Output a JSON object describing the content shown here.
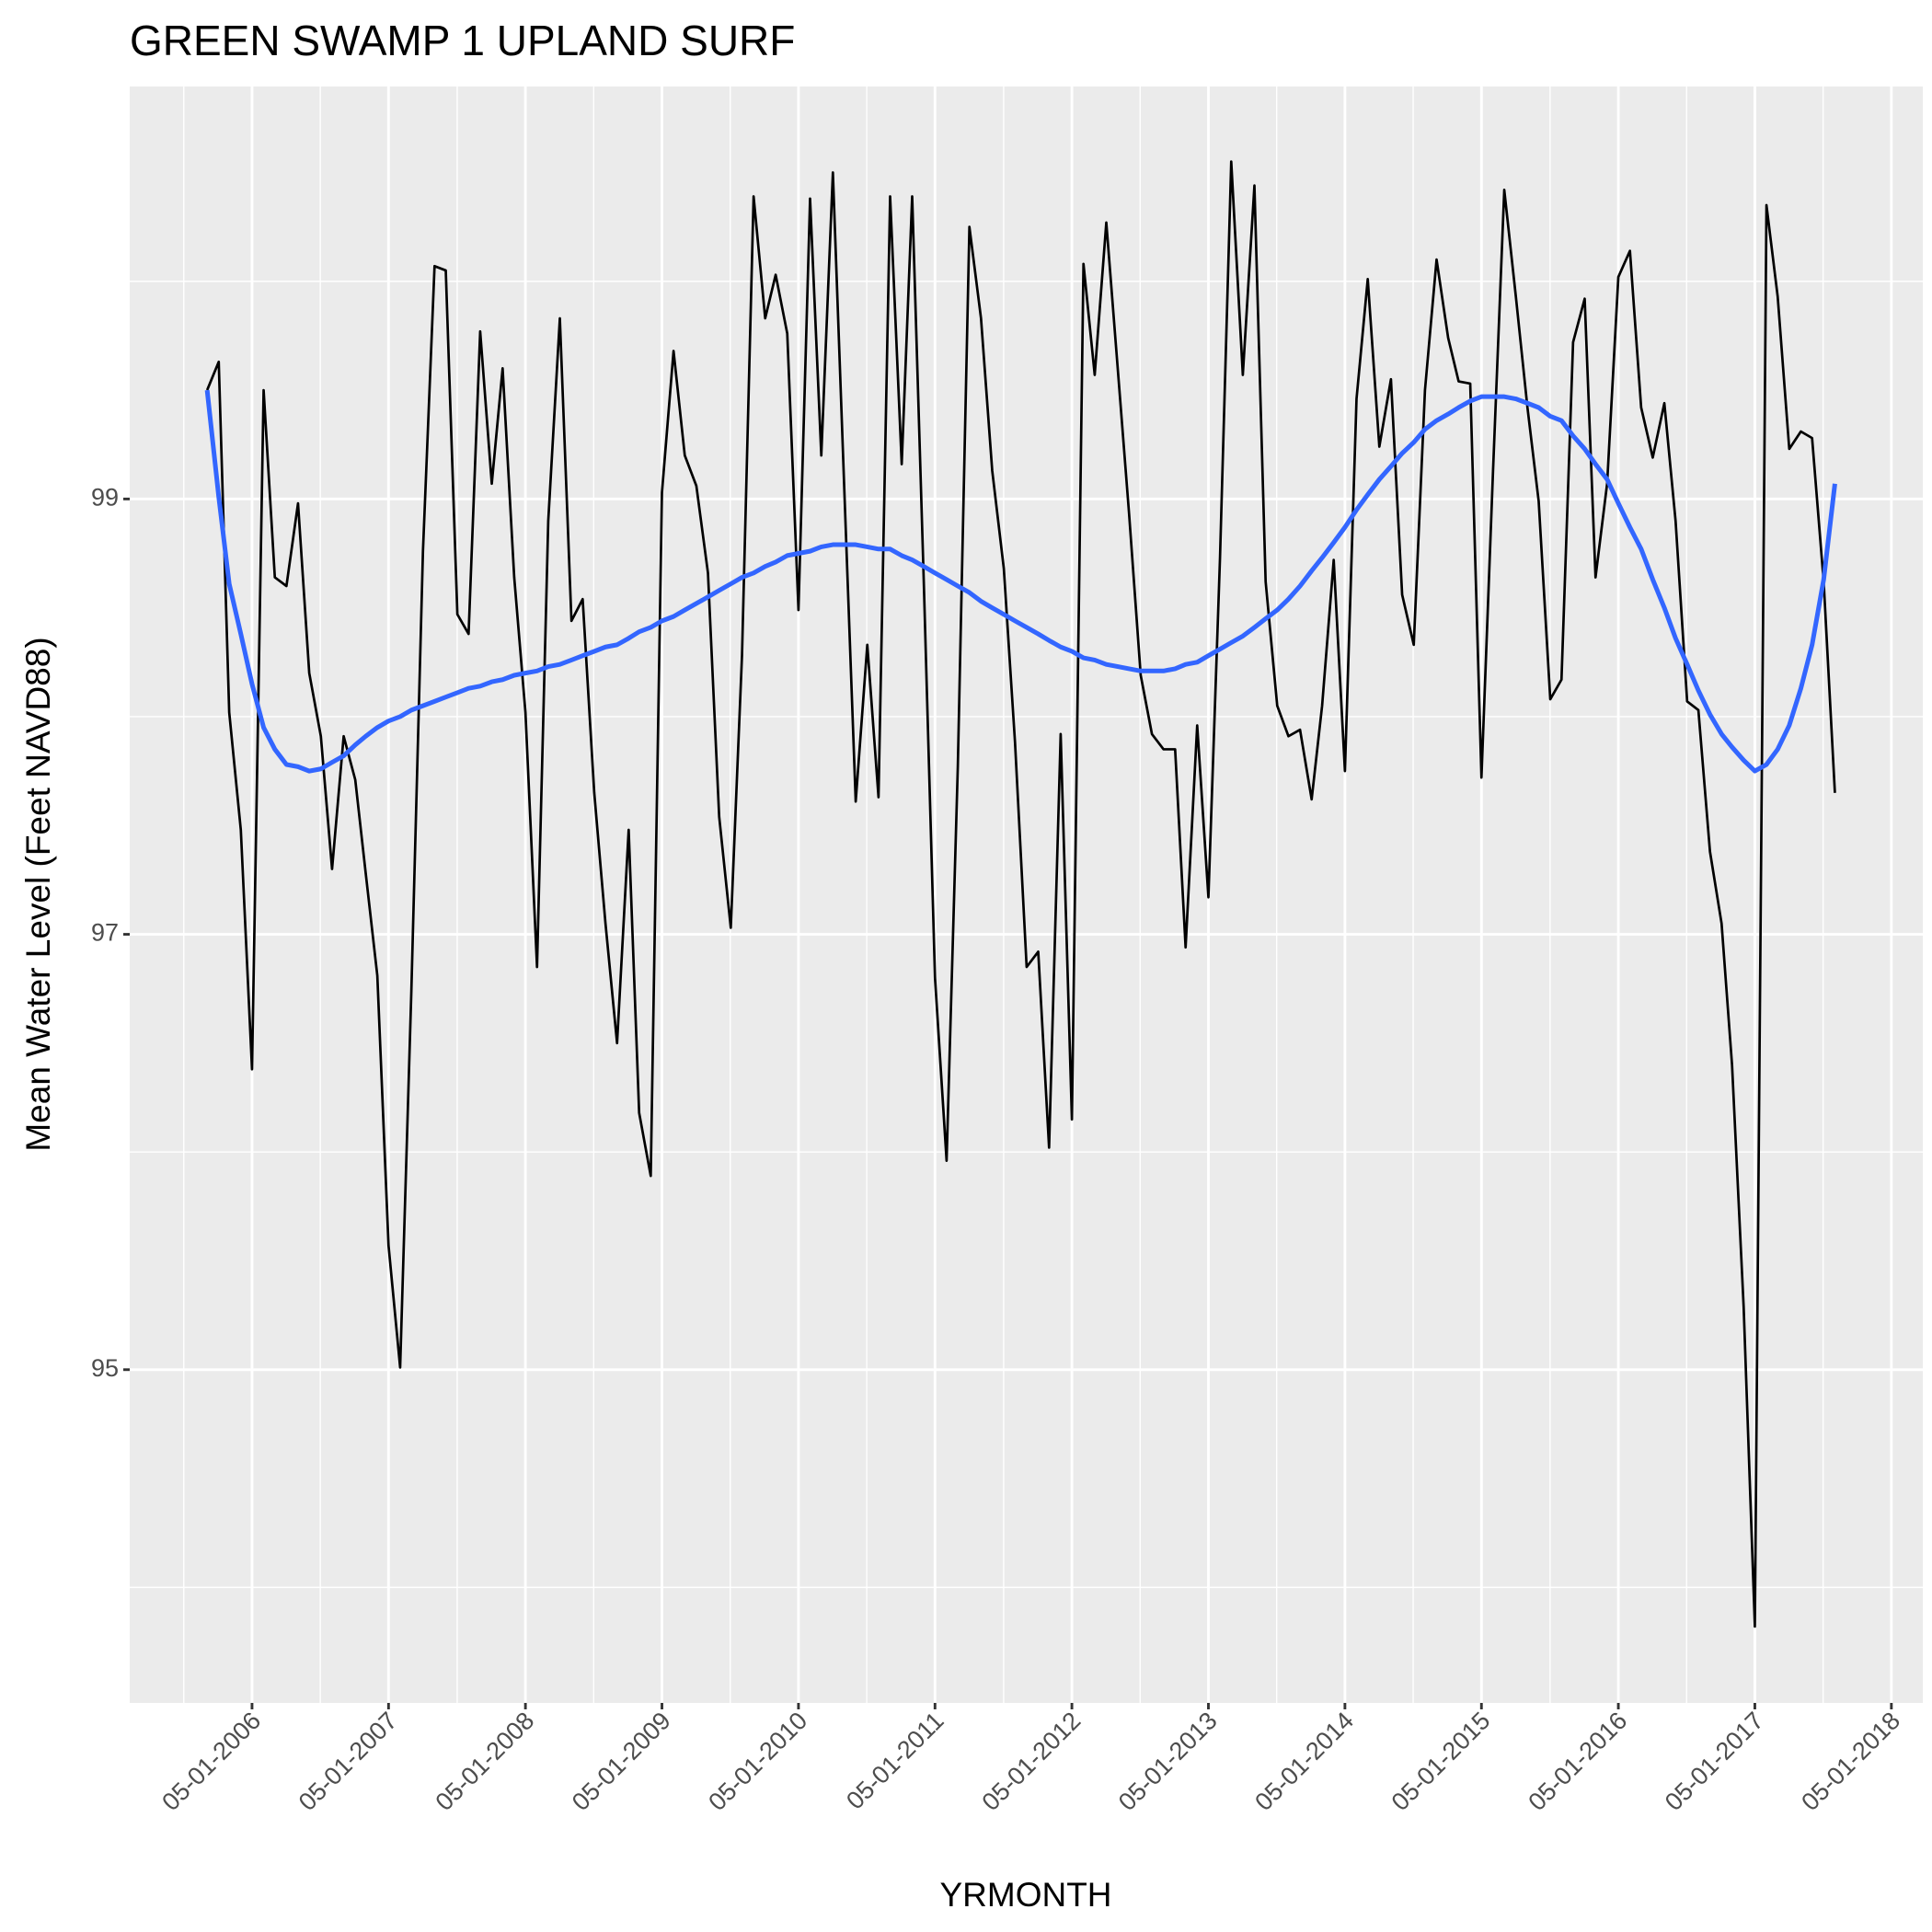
{
  "chart_data": {
    "type": "line",
    "title": "GREEN SWAMP 1 UPLAND SURF",
    "x_label": "YRMONTH",
    "y_label": "Mean Water Level (Feet NAVD88)",
    "x": [
      "2006-01-01",
      "2006-02-01",
      "2006-03-01",
      "2006-04-01",
      "2006-05-01",
      "2006-06-01",
      "2006-07-01",
      "2006-08-01",
      "2006-09-01",
      "2006-10-01",
      "2006-11-01",
      "2006-12-01",
      "2007-01-01",
      "2007-02-01",
      "2007-03-01",
      "2007-04-01",
      "2007-05-01",
      "2007-06-01",
      "2007-07-01",
      "2007-08-01",
      "2007-09-01",
      "2007-10-01",
      "2007-11-01",
      "2007-12-01",
      "2008-01-01",
      "2008-02-01",
      "2008-03-01",
      "2008-04-01",
      "2008-05-01",
      "2008-06-01",
      "2008-07-01",
      "2008-08-01",
      "2008-09-01",
      "2008-10-01",
      "2008-11-01",
      "2008-12-01",
      "2009-01-01",
      "2009-02-01",
      "2009-03-01",
      "2009-04-01",
      "2009-05-01",
      "2009-06-01",
      "2009-07-01",
      "2009-08-01",
      "2009-09-01",
      "2009-10-01",
      "2009-11-01",
      "2009-12-01",
      "2010-01-01",
      "2010-02-01",
      "2010-03-01",
      "2010-04-01",
      "2010-05-01",
      "2010-06-01",
      "2010-07-01",
      "2010-08-01",
      "2010-09-01",
      "2010-10-01",
      "2010-11-01",
      "2010-12-01",
      "2011-01-01",
      "2011-02-01",
      "2011-03-01",
      "2011-04-01",
      "2011-05-01",
      "2011-06-01",
      "2011-07-01",
      "2011-08-01",
      "2011-09-01",
      "2011-10-01",
      "2011-11-01",
      "2011-12-01",
      "2012-01-01",
      "2012-02-01",
      "2012-03-01",
      "2012-04-01",
      "2012-05-01",
      "2012-06-01",
      "2012-07-01",
      "2012-08-01",
      "2012-09-01",
      "2012-10-01",
      "2012-11-01",
      "2012-12-01",
      "2013-01-01",
      "2013-02-01",
      "2013-03-01",
      "2013-04-01",
      "2013-05-01",
      "2013-06-01",
      "2013-07-01",
      "2013-08-01",
      "2013-09-01",
      "2013-10-01",
      "2013-11-01",
      "2013-12-01",
      "2014-01-01",
      "2014-02-01",
      "2014-03-01",
      "2014-04-01",
      "2014-05-01",
      "2014-06-01",
      "2014-07-01",
      "2014-08-01",
      "2014-09-01",
      "2014-10-01",
      "2014-11-01",
      "2014-12-01",
      "2015-01-01",
      "2015-02-01",
      "2015-03-01",
      "2015-04-01",
      "2015-05-01",
      "2015-06-01",
      "2015-07-01",
      "2015-08-01",
      "2015-09-01",
      "2015-10-01",
      "2015-11-01",
      "2015-12-01",
      "2016-01-01",
      "2016-02-01",
      "2016-03-01",
      "2016-04-01",
      "2016-05-01",
      "2016-06-01",
      "2016-07-01",
      "2016-08-01",
      "2016-09-01",
      "2016-10-01",
      "2016-11-01",
      "2016-12-01",
      "2017-01-01",
      "2017-02-01",
      "2017-03-01",
      "2017-04-01",
      "2017-05-01",
      "2017-06-01",
      "2017-07-01",
      "2017-08-01",
      "2017-09-01",
      "2017-10-01",
      "2017-11-01",
      "2017-12-01"
    ],
    "series": [
      {
        "color": "#000000",
        "width": 2.7,
        "values": [
          99.5,
          99.63,
          98.02,
          97.48,
          96.38,
          99.5,
          98.64,
          98.6,
          98.98,
          98.2,
          97.91,
          97.3,
          97.91,
          97.71,
          97.28,
          96.81,
          95.57,
          95.01,
          96.74,
          98.76,
          100.07,
          100.05,
          98.47,
          98.38,
          99.77,
          99.07,
          99.6,
          98.64,
          98.02,
          96.85,
          98.9,
          99.83,
          98.44,
          98.54,
          97.65,
          97.05,
          96.5,
          97.48,
          96.18,
          95.89,
          99.03,
          99.68,
          99.2,
          99.06,
          98.66,
          97.54,
          97.03,
          98.28,
          100.39,
          99.83,
          100.03,
          99.76,
          98.49,
          100.38,
          99.2,
          100.5,
          99.02,
          97.61,
          98.33,
          97.63,
          100.39,
          99.16,
          100.39,
          98.62,
          96.8,
          95.96,
          97.77,
          100.25,
          99.83,
          99.13,
          98.68,
          97.88,
          96.85,
          96.92,
          96.02,
          97.92,
          96.15,
          100.08,
          99.57,
          100.27,
          99.59,
          98.93,
          98.19,
          97.92,
          97.85,
          97.85,
          96.94,
          97.96,
          97.17,
          98.73,
          100.55,
          99.57,
          100.44,
          98.62,
          98.05,
          97.91,
          97.94,
          97.62,
          98.05,
          98.72,
          97.75,
          99.46,
          100.01,
          99.24,
          99.55,
          98.56,
          98.33,
          99.5,
          100.1,
          99.74,
          99.54,
          99.53,
          97.72,
          99.13,
          100.42,
          99.93,
          99.42,
          98.99,
          98.08,
          98.17,
          99.72,
          99.92,
          98.64,
          99.07,
          100.02,
          100.14,
          99.42,
          99.19,
          99.44,
          98.9,
          98.07,
          98.03,
          97.38,
          97.05,
          96.4,
          95.29,
          93.82,
          100.35,
          99.93,
          99.23,
          99.31,
          99.28,
          98.62,
          97.65
        ]
      },
      {
        "color": "#3366FF",
        "width": 5,
        "values": [
          99.5,
          99.01,
          98.61,
          98.38,
          98.15,
          97.95,
          97.85,
          97.78,
          97.77,
          97.75,
          97.76,
          97.79,
          97.82,
          97.87,
          97.91,
          97.95,
          97.98,
          98.0,
          98.03,
          98.05,
          98.07,
          98.09,
          98.11,
          98.13,
          98.14,
          98.16,
          98.17,
          98.19,
          98.2,
          98.21,
          98.23,
          98.24,
          98.26,
          98.28,
          98.3,
          98.32,
          98.33,
          98.36,
          98.39,
          98.41,
          98.44,
          98.46,
          98.49,
          98.52,
          98.55,
          98.58,
          98.61,
          98.64,
          98.66,
          98.69,
          98.71,
          98.74,
          98.75,
          98.76,
          98.78,
          98.79,
          98.79,
          98.79,
          98.78,
          98.77,
          98.77,
          98.74,
          98.72,
          98.69,
          98.66,
          98.63,
          98.6,
          98.57,
          98.53,
          98.5,
          98.47,
          98.44,
          98.41,
          98.38,
          98.35,
          98.32,
          98.3,
          98.27,
          98.26,
          98.24,
          98.23,
          98.22,
          98.21,
          98.21,
          98.21,
          98.22,
          98.24,
          98.25,
          98.28,
          98.31,
          98.34,
          98.37,
          98.41,
          98.45,
          98.49,
          98.54,
          98.6,
          98.67,
          98.73,
          98.8,
          98.87,
          98.95,
          99.02,
          99.09,
          99.15,
          99.21,
          99.26,
          99.32,
          99.36,
          99.39,
          99.42,
          99.45,
          99.47,
          99.47,
          99.47,
          99.46,
          99.44,
          99.42,
          99.38,
          99.36,
          99.29,
          99.23,
          99.16,
          99.09,
          98.98,
          98.87,
          98.77,
          98.63,
          98.5,
          98.36,
          98.24,
          98.12,
          98.01,
          97.92,
          97.86,
          97.8,
          97.75,
          97.78,
          97.85,
          97.96,
          98.13,
          98.33,
          98.63,
          99.07
        ]
      }
    ],
    "xlim": [
      "2005-06-08",
      "2018-07-24"
    ],
    "xticks": [
      {
        "value": "2006-05-01",
        "label": "05-01-2006"
      },
      {
        "value": "2007-05-01",
        "label": "05-01-2007"
      },
      {
        "value": "2008-05-01",
        "label": "05-01-2008"
      },
      {
        "value": "2009-05-01",
        "label": "05-01-2009"
      },
      {
        "value": "2010-05-01",
        "label": "05-01-2010"
      },
      {
        "value": "2011-05-01",
        "label": "05-01-2011"
      },
      {
        "value": "2012-05-01",
        "label": "05-01-2012"
      },
      {
        "value": "2013-05-01",
        "label": "05-01-2013"
      },
      {
        "value": "2014-05-01",
        "label": "05-01-2014"
      },
      {
        "value": "2015-05-01",
        "label": "05-01-2015"
      },
      {
        "value": "2016-05-01",
        "label": "05-01-2016"
      },
      {
        "value": "2017-05-01",
        "label": "05-01-2017"
      },
      {
        "value": "2018-05-01",
        "label": "05-01-2018"
      }
    ],
    "ylim": [
      93.469,
      100.895
    ],
    "yticks": [
      95,
      97,
      99
    ],
    "grid": true
  }
}
